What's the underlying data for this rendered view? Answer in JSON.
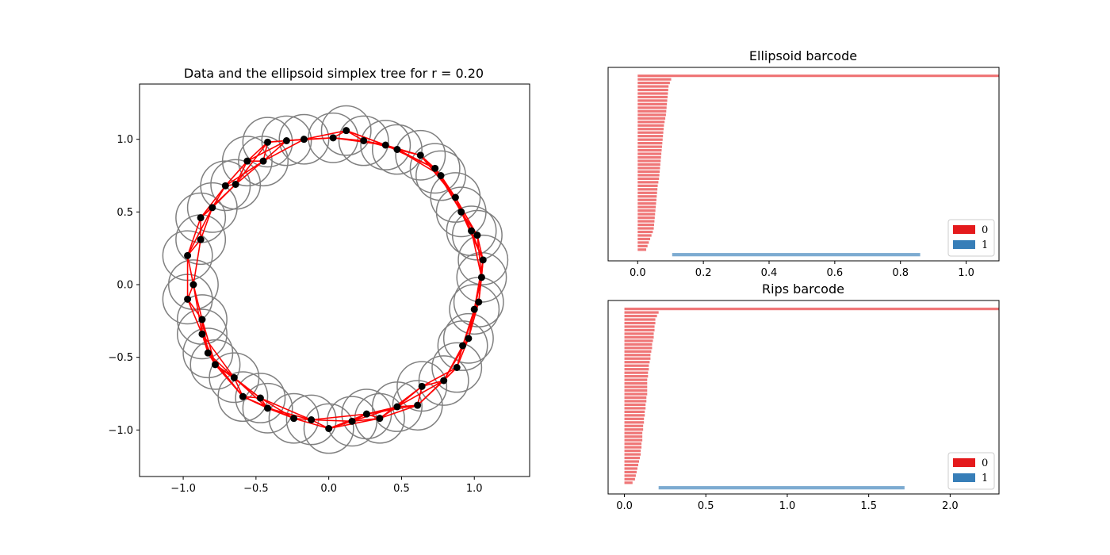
{
  "chart_data": [
    {
      "type": "scatter",
      "title": "Data and the ellipsoid simplex tree for r = 0.20",
      "xlim": [
        -1.3,
        1.38
      ],
      "ylim": [
        -1.32,
        1.38
      ],
      "xticks": [
        -1.0,
        -0.5,
        0.0,
        0.5,
        1.0
      ],
      "yticks": [
        -1.0,
        -0.5,
        0.0,
        0.5,
        1.0
      ],
      "xtick_labels": [
        "−1.0",
        "−0.5",
        "0.0",
        "0.5",
        "1.0"
      ],
      "ytick_labels": [
        "−1.0",
        "−0.5",
        "0.0",
        "0.5",
        "1.0"
      ],
      "circle_radius": 0.17,
      "colors": {
        "points": "#000000",
        "edges": "#ff0000",
        "circles": "#808080"
      },
      "points": [
        [
          0.12,
          1.06
        ],
        [
          0.24,
          0.99
        ],
        [
          0.39,
          0.96
        ],
        [
          0.47,
          0.93
        ],
        [
          0.63,
          0.89
        ],
        [
          0.73,
          0.8
        ],
        [
          0.77,
          0.75
        ],
        [
          0.87,
          0.6
        ],
        [
          0.91,
          0.5
        ],
        [
          0.98,
          0.37
        ],
        [
          1.02,
          0.34
        ],
        [
          1.06,
          0.17
        ],
        [
          1.05,
          0.05
        ],
        [
          1.03,
          -0.12
        ],
        [
          1.0,
          -0.17
        ],
        [
          0.96,
          -0.37
        ],
        [
          0.92,
          -0.42
        ],
        [
          0.88,
          -0.57
        ],
        [
          0.79,
          -0.66
        ],
        [
          0.64,
          -0.7
        ],
        [
          0.61,
          -0.83
        ],
        [
          0.47,
          -0.84
        ],
        [
          0.35,
          -0.92
        ],
        [
          0.26,
          -0.89
        ],
        [
          0.16,
          -0.94
        ],
        [
          0.0,
          -0.99
        ],
        [
          -0.12,
          -0.93
        ],
        [
          -0.24,
          -0.92
        ],
        [
          -0.42,
          -0.85
        ],
        [
          -0.47,
          -0.78
        ],
        [
          -0.59,
          -0.77
        ],
        [
          -0.65,
          -0.64
        ],
        [
          -0.78,
          -0.55
        ],
        [
          -0.83,
          -0.47
        ],
        [
          -0.87,
          -0.34
        ],
        [
          -0.87,
          -0.24
        ],
        [
          -0.97,
          -0.1
        ],
        [
          -0.93,
          0.0
        ],
        [
          -0.97,
          0.2
        ],
        [
          -0.88,
          0.31
        ],
        [
          -0.88,
          0.46
        ],
        [
          -0.8,
          0.53
        ],
        [
          -0.71,
          0.68
        ],
        [
          -0.64,
          0.69
        ],
        [
          -0.56,
          0.85
        ],
        [
          -0.45,
          0.85
        ],
        [
          -0.42,
          0.98
        ],
        [
          -0.29,
          0.99
        ],
        [
          -0.17,
          1.0
        ],
        [
          0.03,
          1.01
        ]
      ]
    },
    {
      "type": "bar",
      "title": "Ellipsoid barcode",
      "xlim": [
        -0.09,
        1.1
      ],
      "xticks": [
        0.0,
        0.2,
        0.4,
        0.6,
        0.8,
        1.0
      ],
      "xtick_labels": [
        "0.0",
        "0.2",
        "0.4",
        "0.6",
        "0.8",
        "1.0"
      ],
      "legend": {
        "placement": "lower-right",
        "entries": [
          {
            "label": "0",
            "color": "#e41a1c"
          },
          {
            "label": "1",
            "color": "#377eb8"
          }
        ]
      },
      "h0_bar_color": "#e41a1c",
      "h1_bar_color": "#377eb8",
      "h0_infinite_death": true,
      "h0_deaths": [
        0.102,
        0.098,
        0.094,
        0.093,
        0.092,
        0.091,
        0.09,
        0.089,
        0.088,
        0.087,
        0.086,
        0.084,
        0.082,
        0.08,
        0.079,
        0.078,
        0.077,
        0.076,
        0.075,
        0.074,
        0.073,
        0.072,
        0.071,
        0.07,
        0.069,
        0.068,
        0.067,
        0.066,
        0.065,
        0.063,
        0.061,
        0.06,
        0.059,
        0.058,
        0.057,
        0.056,
        0.055,
        0.054,
        0.053,
        0.052,
        0.051,
        0.05,
        0.049,
        0.046,
        0.042,
        0.038,
        0.034,
        0.03,
        0.026
      ],
      "h1_bars": [
        {
          "birth": 0.105,
          "death": 0.86
        }
      ]
    },
    {
      "type": "bar",
      "title": "Rips barcode",
      "xlim": [
        -0.1,
        2.3
      ],
      "xticks": [
        0.0,
        0.5,
        1.0,
        1.5,
        2.0
      ],
      "xtick_labels": [
        "0.0",
        "0.5",
        "1.0",
        "1.5",
        "2.0"
      ],
      "legend": {
        "placement": "lower-right",
        "entries": [
          {
            "label": "0",
            "color": "#e41a1c"
          },
          {
            "label": "1",
            "color": "#377eb8"
          }
        ]
      },
      "h0_bar_color": "#e41a1c",
      "h1_bar_color": "#377eb8",
      "h0_infinite_death": true,
      "h0_deaths": [
        0.21,
        0.2,
        0.19,
        0.19,
        0.185,
        0.185,
        0.18,
        0.18,
        0.175,
        0.17,
        0.17,
        0.165,
        0.16,
        0.16,
        0.155,
        0.15,
        0.15,
        0.145,
        0.145,
        0.14,
        0.14,
        0.14,
        0.14,
        0.14,
        0.135,
        0.135,
        0.13,
        0.13,
        0.125,
        0.125,
        0.12,
        0.12,
        0.115,
        0.115,
        0.11,
        0.11,
        0.11,
        0.105,
        0.105,
        0.1,
        0.1,
        0.095,
        0.09,
        0.085,
        0.08,
        0.075,
        0.07,
        0.065,
        0.05
      ],
      "h1_bars": [
        {
          "birth": 0.21,
          "death": 1.72
        }
      ]
    }
  ]
}
